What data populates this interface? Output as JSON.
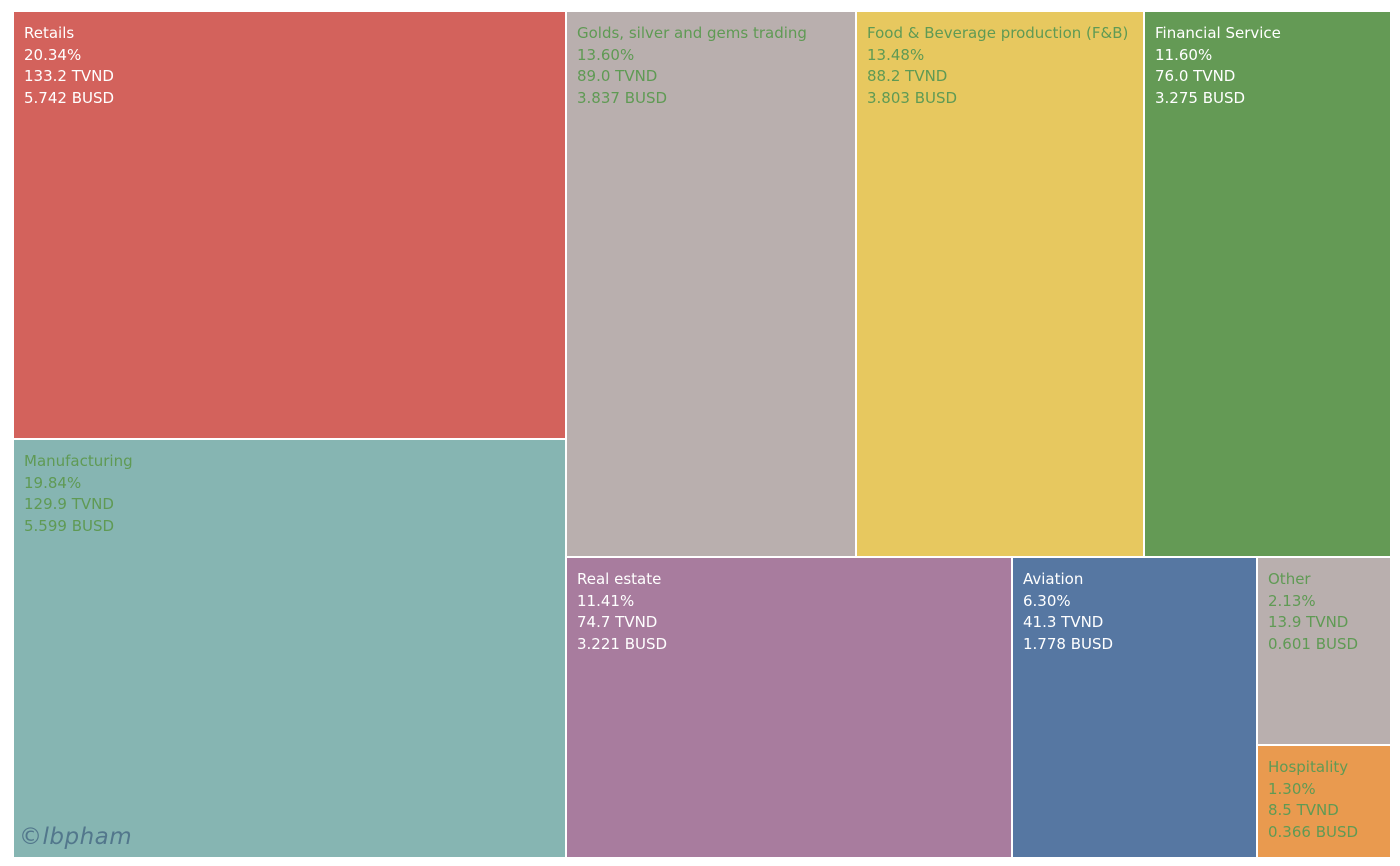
{
  "chart_data": {
    "type": "treemap",
    "title": "",
    "items": [
      {
        "name": "Retails",
        "percent": "20.34%",
        "tvnd": "133.2 TVND",
        "busd": "5.742 BUSD",
        "value": 20.34,
        "color": "#d3625c",
        "text_color": "#ffffff"
      },
      {
        "name": "Manufacturing",
        "percent": "19.84%",
        "tvnd": "129.9 TVND",
        "busd": "5.599 BUSD",
        "value": 19.84,
        "color": "#86b5b2",
        "text_color": "#5f9a54"
      },
      {
        "name": "Golds, silver and gems trading",
        "percent": "13.60%",
        "tvnd": "89.0 TVND",
        "busd": "3.837 BUSD",
        "value": 13.6,
        "color": "#b9afae",
        "text_color": "#5f9a54"
      },
      {
        "name": "Food & Beverage production (F&B)",
        "percent": "13.48%",
        "tvnd": "88.2 TVND",
        "busd": "3.803 BUSD",
        "value": 13.48,
        "color": "#e7c85f",
        "text_color": "#5f9a54"
      },
      {
        "name": "Financial Service",
        "percent": "11.60%",
        "tvnd": "76.0 TVND",
        "busd": "3.275 BUSD",
        "value": 11.6,
        "color": "#649a55",
        "text_color": "#ffffff"
      },
      {
        "name": "Real estate",
        "percent": "11.41%",
        "tvnd": "74.7 TVND",
        "busd": "3.221 BUSD",
        "value": 11.41,
        "color": "#a87c9e",
        "text_color": "#ffffff"
      },
      {
        "name": "Aviation",
        "percent": "6.30%",
        "tvnd": "41.3 TVND",
        "busd": "1.778 BUSD",
        "value": 6.3,
        "color": "#5677a2",
        "text_color": "#ffffff"
      },
      {
        "name": "Other",
        "percent": "2.13%",
        "tvnd": "13.9 TVND",
        "busd": "0.601 BUSD",
        "value": 2.13,
        "color": "#b9afae",
        "text_color": "#5f9a54"
      },
      {
        "name": "Hospitality",
        "percent": "1.30%",
        "tvnd": "8.5 TVND",
        "busd": "0.366 BUSD",
        "value": 1.3,
        "color": "#e99a4f",
        "text_color": "#5f9a54"
      }
    ]
  },
  "watermark": "©lbpham"
}
